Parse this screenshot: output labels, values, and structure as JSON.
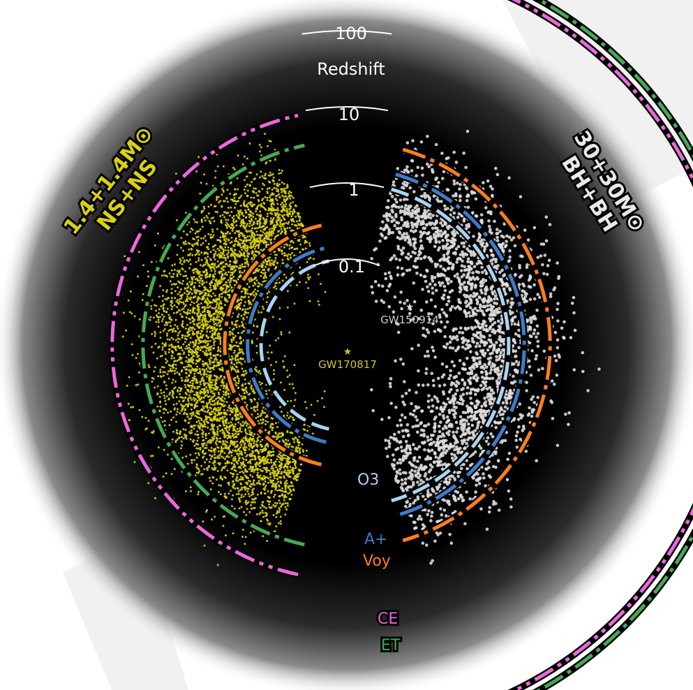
{
  "chart_data": {
    "type": "scatter",
    "title": "",
    "scale": {
      "title": "Redshift",
      "ticks": [
        "0.1",
        "1",
        "10",
        "100"
      ],
      "tick_values": [
        0.1,
        1,
        10,
        100
      ]
    },
    "populations": [
      {
        "name_line1": "1.4+1.4M⊙",
        "name_line2": "NS+NS",
        "color": "#d9d10f",
        "side": "left"
      },
      {
        "name_line1": "30+30M⊙",
        "name_line2": "BH+BH",
        "color": "#dddddd",
        "side": "right"
      }
    ],
    "detectors": [
      {
        "name": "O3",
        "color": "#a8d4f0",
        "reach_bns_z": 0.1,
        "reach_bbh_z": 1.0
      },
      {
        "name": "A+",
        "color": "#3d7cc9",
        "reach_bns_z": 0.15,
        "reach_bbh_z": 1.6
      },
      {
        "name": "Voy",
        "color": "#ff7f1a",
        "reach_bns_z": 0.3,
        "reach_bbh_z": 3.5
      },
      {
        "name": "CE",
        "color": "#ee66dd",
        "reach_bns_z": 9,
        "reach_bbh_z": 100
      },
      {
        "name": "ET",
        "color": "#44aa55",
        "reach_bns_z": 5,
        "reach_bbh_z": 100
      }
    ],
    "events": [
      {
        "name": "GW170817",
        "color": "#cfc426"
      },
      {
        "name": "GW150914",
        "color": "#cccccc"
      }
    ],
    "grid": false,
    "legend": "none"
  }
}
